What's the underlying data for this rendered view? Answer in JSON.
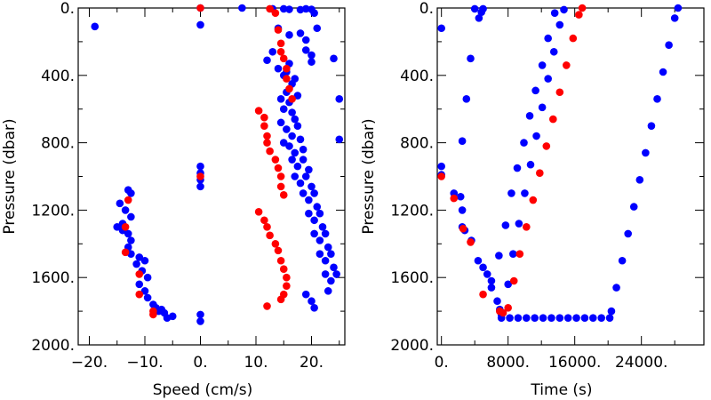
{
  "colors": {
    "blue": "#0000ff",
    "red": "#ff0000",
    "axis": "#000000"
  },
  "chart_data": [
    {
      "type": "scatter",
      "xlabel": "Speed (cm/s)",
      "ylabel": "Pressure (dbar)",
      "xlim": [
        -22,
        26
      ],
      "ylim": [
        2000,
        0
      ],
      "y_inverted": true,
      "xticks": [
        -20,
        -10,
        0,
        10,
        20
      ],
      "xtick_labels": [
        "−20.",
        "−10.",
        "0.",
        "10.",
        "20."
      ],
      "yticks": [
        0,
        400,
        800,
        1200,
        1600,
        2000
      ],
      "ytick_labels": [
        "0.",
        "400.",
        "800.",
        "1200.",
        "1600.",
        "2000."
      ],
      "series": [
        {
          "color": "blue",
          "points": [
            [
              -19,
              110
            ],
            [
              0,
              0
            ],
            [
              0,
              100
            ],
            [
              0,
              940
            ],
            [
              0,
              980
            ],
            [
              0,
              1020
            ],
            [
              0,
              1060
            ],
            [
              0,
              1820
            ],
            [
              0,
              1860
            ],
            [
              7.5,
              0
            ],
            [
              13,
              5
            ],
            [
              15,
              5
            ],
            [
              16,
              8
            ],
            [
              18,
              10
            ],
            [
              19,
              5
            ],
            [
              20,
              8
            ],
            [
              20.5,
              30
            ],
            [
              14,
              120
            ],
            [
              16,
              160
            ],
            [
              18,
              150
            ],
            [
              19,
              190
            ],
            [
              21,
              120
            ],
            [
              19,
              250
            ],
            [
              20,
              280
            ],
            [
              20,
              320
            ],
            [
              24,
              300
            ],
            [
              25,
              540
            ],
            [
              25,
              780
            ],
            [
              12,
              310
            ],
            [
              13,
              260
            ],
            [
              14,
              360
            ],
            [
              15,
              400
            ],
            [
              15.5,
              380
            ],
            [
              16,
              330
            ],
            [
              17,
              420
            ],
            [
              16.5,
              450
            ],
            [
              15.5,
              500
            ],
            [
              17.5,
              520
            ],
            [
              16,
              560
            ],
            [
              14.5,
              540
            ],
            [
              15,
              600
            ],
            [
              16.5,
              620
            ],
            [
              17,
              660
            ],
            [
              14.5,
              680
            ],
            [
              15.5,
              720
            ],
            [
              16.5,
              760
            ],
            [
              17.5,
              700
            ],
            [
              18,
              780
            ],
            [
              16,
              820
            ],
            [
              17,
              860
            ],
            [
              18.5,
              840
            ],
            [
              15,
              800
            ],
            [
              16.5,
              900
            ],
            [
              17.5,
              940
            ],
            [
              18.5,
              900
            ],
            [
              19.5,
              960
            ],
            [
              17,
              1000
            ],
            [
              18,
              1040
            ],
            [
              19,
              1000
            ],
            [
              20,
              1060
            ],
            [
              18.5,
              1100
            ],
            [
              19.5,
              1140
            ],
            [
              20.5,
              1100
            ],
            [
              21,
              1180
            ],
            [
              19.5,
              1220
            ],
            [
              20.5,
              1260
            ],
            [
              21.5,
              1220
            ],
            [
              22,
              1300
            ],
            [
              20.5,
              1340
            ],
            [
              21.5,
              1380
            ],
            [
              22.5,
              1340
            ],
            [
              23,
              1420
            ],
            [
              21.5,
              1460
            ],
            [
              22.5,
              1500
            ],
            [
              23.5,
              1460
            ],
            [
              24,
              1540
            ],
            [
              22.5,
              1580
            ],
            [
              23.5,
              1620
            ],
            [
              24.5,
              1580
            ],
            [
              19,
              1700
            ],
            [
              20,
              1740
            ],
            [
              20.5,
              1780
            ],
            [
              23,
              1680
            ],
            [
              -13,
              1080
            ],
            [
              -12.5,
              1100
            ],
            [
              -14.5,
              1160
            ],
            [
              -13.5,
              1200
            ],
            [
              -12.5,
              1240
            ],
            [
              -14,
              1280
            ],
            [
              -15,
              1300
            ],
            [
              -14,
              1320
            ],
            [
              -13,
              1340
            ],
            [
              -12.5,
              1380
            ],
            [
              -13,
              1420
            ],
            [
              -12.5,
              1460
            ],
            [
              -11,
              1480
            ],
            [
              -10,
              1500
            ],
            [
              -11.5,
              1520
            ],
            [
              -10.5,
              1560
            ],
            [
              -9.5,
              1600
            ],
            [
              -11,
              1640
            ],
            [
              -10,
              1680
            ],
            [
              -9.5,
              1720
            ],
            [
              -8.5,
              1760
            ],
            [
              -8,
              1780
            ],
            [
              -7.5,
              1800
            ],
            [
              -7,
              1790
            ],
            [
              -6.5,
              1810
            ],
            [
              -6,
              1840
            ],
            [
              -5,
              1830
            ]
          ]
        },
        {
          "color": "red",
          "points": [
            [
              0,
              0
            ],
            [
              0,
              1000
            ],
            [
              12.5,
              5
            ],
            [
              13.5,
              30
            ],
            [
              14,
              130
            ],
            [
              14.5,
              210
            ],
            [
              14.5,
              260
            ],
            [
              15,
              300
            ],
            [
              15.5,
              360
            ],
            [
              15.5,
              420
            ],
            [
              16,
              480
            ],
            [
              16.5,
              540
            ],
            [
              10.5,
              610
            ],
            [
              11.5,
              650
            ],
            [
              11.5,
              700
            ],
            [
              12,
              760
            ],
            [
              12,
              800
            ],
            [
              12.5,
              850
            ],
            [
              13.5,
              900
            ],
            [
              14,
              950
            ],
            [
              14.5,
              1000
            ],
            [
              14.5,
              1060
            ],
            [
              15,
              1110
            ],
            [
              10.5,
              1210
            ],
            [
              11.5,
              1260
            ],
            [
              12,
              1300
            ],
            [
              12.5,
              1350
            ],
            [
              13.5,
              1400
            ],
            [
              14,
              1440
            ],
            [
              14.5,
              1500
            ],
            [
              15,
              1550
            ],
            [
              15.5,
              1600
            ],
            [
              15.5,
              1650
            ],
            [
              15,
              1700
            ],
            [
              14.5,
              1730
            ],
            [
              12,
              1770
            ],
            [
              -13,
              1140
            ],
            [
              -13.5,
              1300
            ],
            [
              -13.5,
              1450
            ],
            [
              -11,
              1580
            ],
            [
              -11,
              1700
            ],
            [
              -8.5,
              1800
            ],
            [
              -8.5,
              1820
            ]
          ]
        }
      ]
    },
    {
      "type": "scatter",
      "xlabel": "Time (s)",
      "ylabel": "Pressure (dbar)",
      "xlim": [
        -500,
        31500
      ],
      "ylim": [
        2000,
        0
      ],
      "y_inverted": true,
      "xticks": [
        0,
        8000,
        16000,
        24000
      ],
      "xtick_labels": [
        "0.",
        "8000.",
        "16000.",
        "24000."
      ],
      "yticks": [
        0,
        400,
        800,
        1200,
        1600,
        2000
      ],
      "ytick_labels": [
        "0.",
        "400.",
        "800.",
        "1200.",
        "1600.",
        "2000."
      ],
      "series": [
        {
          "color": "blue",
          "points": [
            [
              0,
              120
            ],
            [
              3000,
              540
            ],
            [
              3500,
              300
            ],
            [
              4000,
              5
            ],
            [
              4500,
              60
            ],
            [
              4800,
              25
            ],
            [
              5000,
              5
            ],
            [
              2500,
              790
            ],
            [
              2500,
              1200
            ],
            [
              2500,
              1300
            ],
            [
              0,
              940
            ],
            [
              0,
              990
            ],
            [
              1500,
              1100
            ],
            [
              2300,
              1120
            ],
            [
              2800,
              1320
            ],
            [
              3600,
              1380
            ],
            [
              4400,
              1500
            ],
            [
              5000,
              1540
            ],
            [
              5500,
              1580
            ],
            [
              6000,
              1660
            ],
            [
              6700,
              1740
            ],
            [
              7000,
              1790
            ],
            [
              7200,
              1820
            ],
            [
              7200,
              1840
            ],
            [
              8200,
              1840
            ],
            [
              9200,
              1840
            ],
            [
              10200,
              1840
            ],
            [
              11200,
              1840
            ],
            [
              12200,
              1840
            ],
            [
              13200,
              1840
            ],
            [
              14200,
              1840
            ],
            [
              15200,
              1840
            ],
            [
              16200,
              1840
            ],
            [
              17200,
              1840
            ],
            [
              18200,
              1840
            ],
            [
              19200,
              1840
            ],
            [
              20200,
              1840
            ],
            [
              6000,
              1620
            ],
            [
              6900,
              1470
            ],
            [
              7700,
              1290
            ],
            [
              8400,
              1100
            ],
            [
              9100,
              950
            ],
            [
              9900,
              800
            ],
            [
              10600,
              640
            ],
            [
              11300,
              490
            ],
            [
              12100,
              340
            ],
            [
              12800,
              180
            ],
            [
              13600,
              30
            ],
            [
              8000,
              1640
            ],
            [
              8600,
              1460
            ],
            [
              9300,
              1280
            ],
            [
              10000,
              1100
            ],
            [
              10700,
              930
            ],
            [
              11400,
              760
            ],
            [
              12100,
              590
            ],
            [
              12800,
              420
            ],
            [
              13500,
              260
            ],
            [
              14200,
              100
            ],
            [
              14700,
              10
            ],
            [
              20400,
              1800
            ],
            [
              21000,
              1660
            ],
            [
              21700,
              1500
            ],
            [
              22400,
              1340
            ],
            [
              23100,
              1180
            ],
            [
              23800,
              1020
            ],
            [
              24500,
              860
            ],
            [
              25200,
              700
            ],
            [
              25900,
              540
            ],
            [
              26600,
              380
            ],
            [
              27300,
              220
            ],
            [
              28000,
              60
            ],
            [
              28400,
              0
            ]
          ]
        },
        {
          "color": "red",
          "points": [
            [
              0,
              1000
            ],
            [
              1500,
              1130
            ],
            [
              2600,
              1310
            ],
            [
              3500,
              1390
            ],
            [
              5000,
              1700
            ],
            [
              7000,
              1800
            ],
            [
              7400,
              1810
            ],
            [
              8000,
              1780
            ],
            [
              8700,
              1620
            ],
            [
              9400,
              1460
            ],
            [
              10200,
              1300
            ],
            [
              11000,
              1140
            ],
            [
              11800,
              980
            ],
            [
              12600,
              820
            ],
            [
              13400,
              660
            ],
            [
              14200,
              500
            ],
            [
              15000,
              340
            ],
            [
              15800,
              180
            ],
            [
              16500,
              40
            ],
            [
              16900,
              0
            ]
          ]
        }
      ]
    }
  ]
}
